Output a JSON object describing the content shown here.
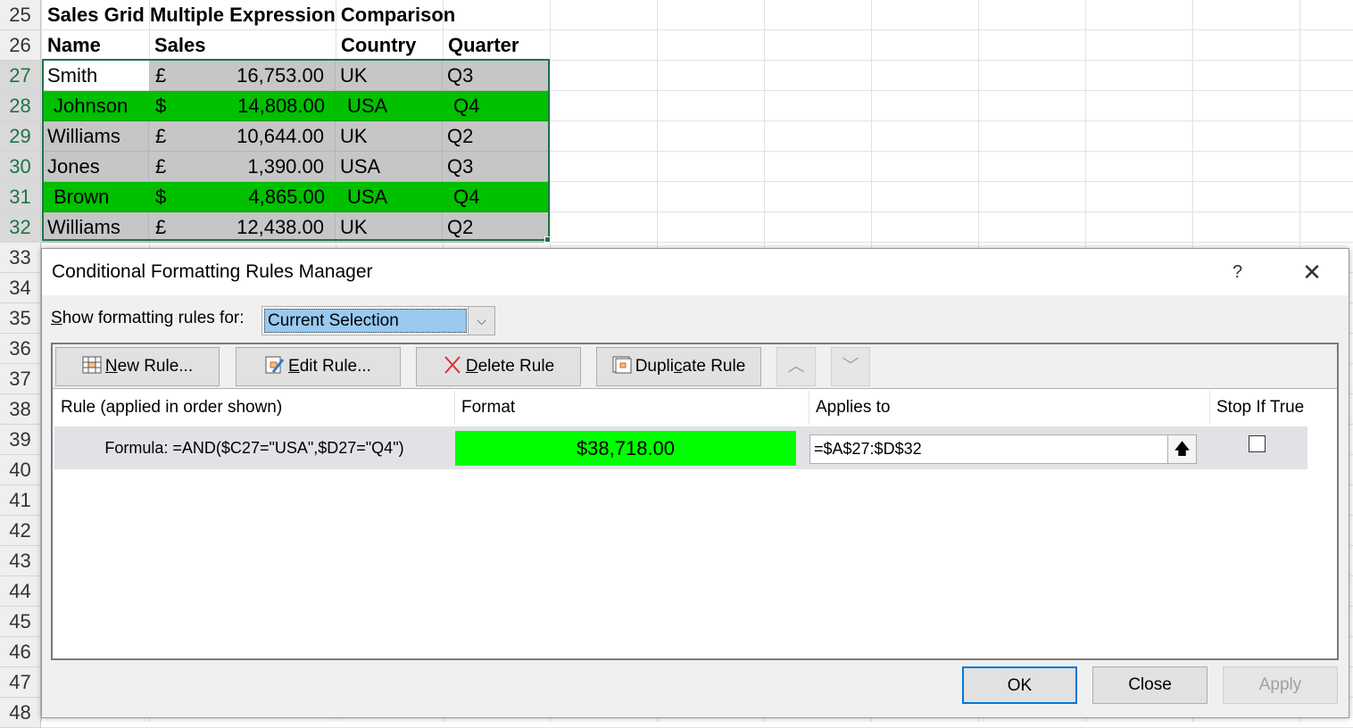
{
  "sheet": {
    "row_numbers": [
      "25",
      "26",
      "27",
      "28",
      "29",
      "30",
      "31",
      "32",
      "33",
      "34",
      "35",
      "36",
      "37",
      "38",
      "39",
      "40",
      "41",
      "42",
      "43",
      "44",
      "45",
      "46",
      "47",
      "48"
    ],
    "title": "Sales Grid Multiple Expression Comparison",
    "headers": [
      "Name",
      "Sales",
      "Country",
      "Quarter"
    ],
    "rows": [
      {
        "name": "Smith",
        "currency": "£",
        "sales": "16,753.00",
        "country": "UK",
        "quarter": "Q3",
        "highlight": false
      },
      {
        "name": "Johnson",
        "currency": "$",
        "sales": "14,808.00",
        "country": "USA",
        "quarter": "Q4",
        "highlight": true
      },
      {
        "name": "Williams",
        "currency": "£",
        "sales": "10,644.00",
        "country": "UK",
        "quarter": "Q2",
        "highlight": false
      },
      {
        "name": "Jones",
        "currency": "£",
        "sales": "1,390.00",
        "country": "USA",
        "quarter": "Q3",
        "highlight": false
      },
      {
        "name": "Brown",
        "currency": "$",
        "sales": "4,865.00",
        "country": "USA",
        "quarter": "Q4",
        "highlight": true
      },
      {
        "name": "Williams",
        "currency": "£",
        "sales": "12,438.00",
        "country": "UK",
        "quarter": "Q2",
        "highlight": false
      }
    ],
    "colors": {
      "highlight": "#00c000",
      "fill": "#c6c6c6",
      "selection": "#217346"
    }
  },
  "dialog": {
    "title": "Conditional Formatting Rules Manager",
    "help": "?",
    "show_label_prefix": "S",
    "show_label_rest": "how formatting rules for:",
    "show_value": "Current Selection",
    "toolbar": {
      "new_rule": {
        "u": "N",
        "rest": "ew Rule..."
      },
      "edit_rule": {
        "u": "E",
        "rest": "dit Rule..."
      },
      "delete_rule": {
        "u": "D",
        "rest": "elete Rule"
      },
      "duplicate_rule": {
        "pre": "Dupli",
        "u": "c",
        "rest": "ate Rule"
      }
    },
    "columns": [
      "Rule (applied in order shown)",
      "Format",
      "Applies to",
      "Stop If True"
    ],
    "rules": [
      {
        "formula": "Formula: =AND($C27=\"USA\",$D27=\"Q4\")",
        "format_preview": "$38,718.00",
        "applies_to": "=$A$27:$D$32",
        "stop_if_true": false,
        "format_color": "#00ff00"
      }
    ],
    "buttons": {
      "ok": "OK",
      "close": "Close",
      "apply": "Apply"
    }
  }
}
